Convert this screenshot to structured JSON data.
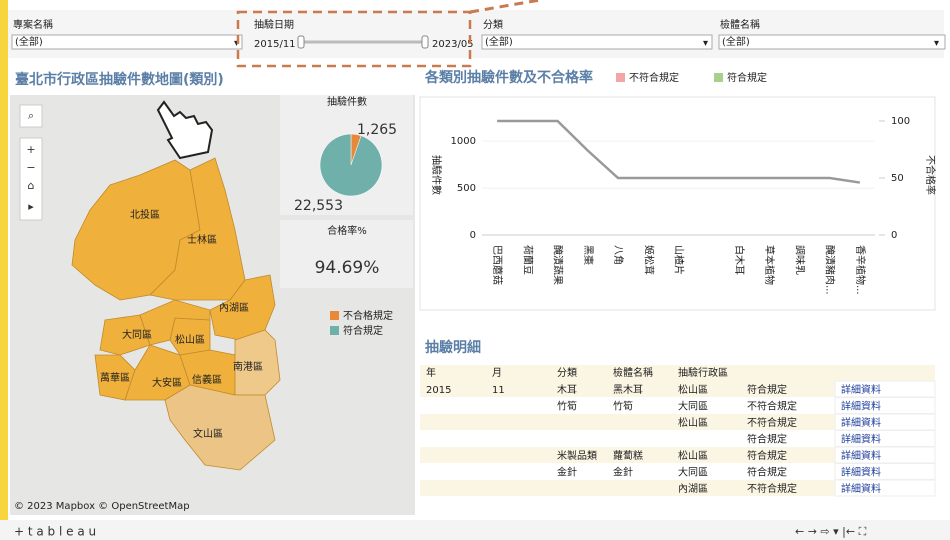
{
  "filters": [
    {
      "label": "專案名稱",
      "value": "(全部)"
    },
    {
      "label": "抽驗日期",
      "start": "2015/11",
      "end": "2023/05"
    },
    {
      "label": "分類",
      "value": "(全部)"
    },
    {
      "label": "檢體名稱",
      "value": "(全部)"
    }
  ],
  "map": {
    "title": "臺北市行政區抽驗件數地圖(類別)",
    "districts": [
      "北投區",
      "士林區",
      "內湖區",
      "大同區",
      "松山區",
      "萬華區",
      "大安區",
      "信義區",
      "南港區",
      "文山區"
    ],
    "legend": [
      {
        "name": "不合格規定",
        "color": "#e8883a"
      },
      {
        "name": "符合規定",
        "color": "#6fb0aa"
      }
    ],
    "attribution": "© 2023 Mapbox © OpenStreetMap"
  },
  "pie": {
    "type": "pie",
    "title": "抽驗件數",
    "values": [
      1265,
      22553
    ],
    "value_labels": [
      "1,265",
      "22,553"
    ],
    "colors": [
      "#e8883a",
      "#6fb0aa"
    ]
  },
  "rate": {
    "title": "合格率%",
    "value": "94.69%"
  },
  "line_chart": {
    "type": "line",
    "title": "各類別抽驗件數及不合格率",
    "legend": [
      {
        "name": "不符合規定",
        "color": "#f4a6a6"
      },
      {
        "name": "符合規定",
        "color": "#a8d08d"
      }
    ],
    "ylabel": "抽驗件數",
    "y2label": "不合格率",
    "categories": [
      "巴西蘑菇",
      "荷蘭豆",
      "醃漬蔬果",
      "黑棗",
      "八角",
      "姬松茸",
      "山楂片",
      null,
      "白木耳",
      "草本植物",
      "調味乳",
      "醃漬豬肉...",
      "香辛植物..."
    ],
    "ylim": [
      0,
      1300
    ],
    "yticks": [
      0,
      500,
      1000
    ],
    "y2lim": [
      0,
      107
    ],
    "y2ticks": [
      0,
      50,
      100
    ],
    "series": [
      {
        "name": "不合格率",
        "color": "#999999",
        "axis": "y2",
        "values": [
          100,
          100,
          100,
          74,
          50,
          50,
          50,
          50,
          50,
          50,
          50,
          50,
          46
        ]
      }
    ]
  },
  "table": {
    "title": "抽驗明細",
    "headers": {
      "year": "年",
      "month": "月",
      "category": "分類",
      "sample": "檢體名稱",
      "district": "抽驗行政區"
    },
    "rows": [
      {
        "year": "2015",
        "month": "11",
        "category": "木耳",
        "sample": "黑木耳",
        "district": "松山區",
        "result": "符合規定",
        "link": "詳細資料"
      },
      {
        "category": "竹筍",
        "sample": "竹筍",
        "district": "大同區",
        "result": "不符合規定",
        "link": "詳細資料"
      },
      {
        "district": "松山區",
        "result": "不符合規定",
        "link": "詳細資料"
      },
      {
        "result": "符合規定",
        "link": "詳細資料"
      },
      {
        "category": "米製品類",
        "sample": "蘿蔔糕",
        "district": "松山區",
        "result": "符合規定",
        "link": "詳細資料"
      },
      {
        "category": "金針",
        "sample": "金針",
        "district": "大同區",
        "result": "符合規定",
        "link": "詳細資料"
      },
      {
        "district": "內湖區",
        "result": "不符合規定",
        "link": "詳細資料"
      }
    ]
  },
  "footer": {
    "brand": "+ t a b l e a u"
  }
}
